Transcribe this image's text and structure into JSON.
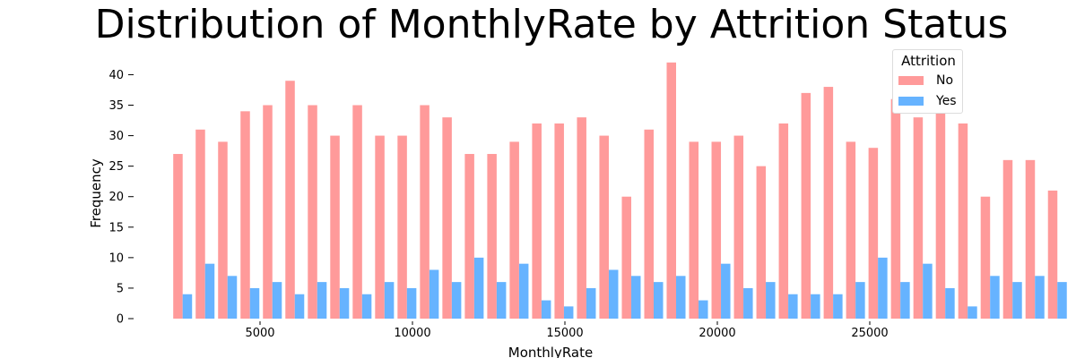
{
  "chart_data": {
    "type": "bar",
    "title": "Distribution of MonthlyRate by Attrition Status",
    "xlabel": "MonthlyRate",
    "ylabel": "Frequency",
    "xlim": [
      1500,
      27500
    ],
    "ylim": [
      0,
      43
    ],
    "x_ticks": [
      5000,
      10000,
      15000,
      20000,
      25000
    ],
    "y_ticks": [
      0,
      5,
      10,
      15,
      20,
      25,
      30,
      35,
      40
    ],
    "bin_start": 2094,
    "bin_width": 735.7,
    "grid": false,
    "legend": {
      "title": "Attrition",
      "placement": "top-right"
    },
    "series": [
      {
        "name": "No",
        "color": "#ff9a9a",
        "values": [
          27,
          31,
          29,
          34,
          35,
          39,
          35,
          30,
          35,
          30,
          30,
          35,
          33,
          27,
          27,
          29,
          32,
          32,
          33,
          30,
          20,
          31,
          42,
          29,
          29,
          30,
          25,
          32,
          37,
          38,
          29,
          28,
          36,
          33,
          36,
          32,
          20,
          26,
          26,
          21
        ]
      },
      {
        "name": "Yes",
        "color": "#66b3ff",
        "values": [
          4,
          9,
          7,
          5,
          6,
          4,
          6,
          5,
          4,
          6,
          5,
          8,
          6,
          10,
          6,
          9,
          3,
          2,
          5,
          8,
          7,
          6,
          7,
          3,
          9,
          5,
          6,
          4,
          4,
          4,
          6,
          10,
          6,
          9,
          5,
          2,
          7,
          6,
          7,
          6
        ]
      }
    ]
  }
}
